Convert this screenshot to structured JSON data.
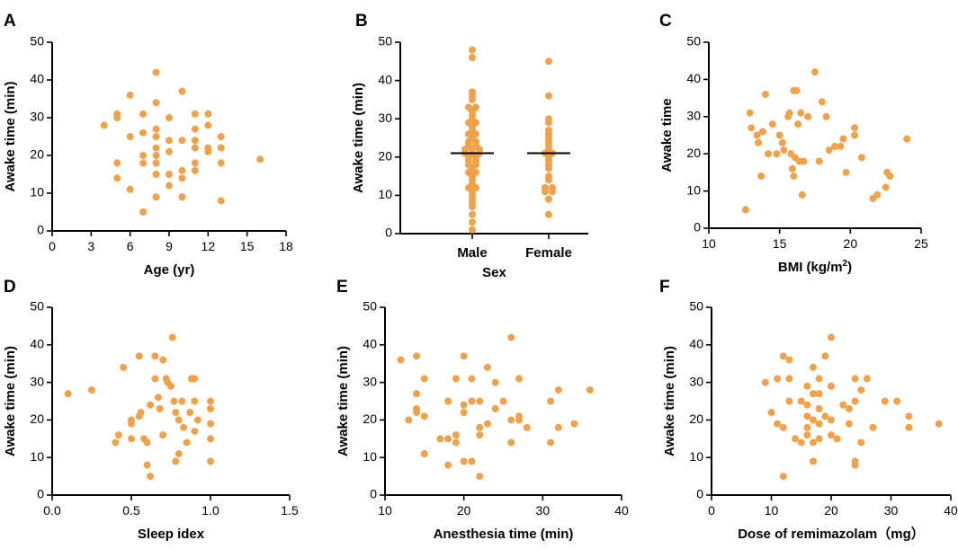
{
  "colors": {
    "marker": "#f0a24a",
    "axis": "#000000"
  },
  "chart_data": [
    {
      "id": "A",
      "type": "scatter",
      "letter": "A",
      "xlabel": "Age (yr)",
      "ylabel": "Awake time (min)",
      "xlim": [
        0,
        18
      ],
      "ylim": [
        0,
        50
      ],
      "xticks": [
        0,
        3,
        6,
        9,
        12,
        15,
        18
      ],
      "yticks": [
        0,
        10,
        20,
        30,
        40,
        50
      ],
      "points": [
        [
          4,
          28
        ],
        [
          5,
          31
        ],
        [
          5,
          30
        ],
        [
          5,
          18
        ],
        [
          5,
          14
        ],
        [
          6,
          36
        ],
        [
          6,
          25
        ],
        [
          6,
          11
        ],
        [
          7,
          31
        ],
        [
          7,
          26
        ],
        [
          7,
          20
        ],
        [
          7,
          18
        ],
        [
          7,
          5
        ],
        [
          8,
          42
        ],
        [
          8,
          34
        ],
        [
          8,
          27
        ],
        [
          8,
          25
        ],
        [
          8,
          22
        ],
        [
          8,
          20
        ],
        [
          8,
          18
        ],
        [
          8,
          15
        ],
        [
          8,
          9
        ],
        [
          9,
          30
        ],
        [
          9,
          24
        ],
        [
          9,
          21
        ],
        [
          9,
          15
        ],
        [
          9,
          12
        ],
        [
          10,
          37
        ],
        [
          10,
          24
        ],
        [
          10,
          16
        ],
        [
          10,
          14
        ],
        [
          10,
          9
        ],
        [
          11,
          31
        ],
        [
          11,
          27
        ],
        [
          11,
          24
        ],
        [
          11,
          22
        ],
        [
          11,
          18
        ],
        [
          11,
          16
        ],
        [
          12,
          31
        ],
        [
          12,
          28
        ],
        [
          12,
          22
        ],
        [
          12,
          21
        ],
        [
          13,
          25
        ],
        [
          13,
          22
        ],
        [
          13,
          18
        ],
        [
          13,
          8
        ],
        [
          16,
          19
        ]
      ]
    },
    {
      "id": "B",
      "type": "strip",
      "letter": "B",
      "xlabel": "Sex",
      "ylabel": "Awake time (min)",
      "ylim": [
        0,
        50
      ],
      "yticks": [
        0,
        10,
        20,
        30,
        40,
        50
      ],
      "categories": [
        "Male",
        "Female"
      ],
      "medians": [
        21,
        21
      ],
      "series": [
        {
          "name": "Male",
          "values": [
            48,
            46,
            37,
            36,
            35,
            33,
            33,
            32,
            31,
            30,
            29,
            29,
            28,
            27,
            26,
            26,
            25,
            24,
            24,
            23,
            23,
            22,
            22,
            22,
            21,
            21,
            21,
            20,
            20,
            19,
            19,
            18,
            18,
            17,
            16,
            16,
            15,
            14,
            13,
            12,
            12,
            11,
            10,
            9,
            8,
            7,
            5,
            3,
            1
          ]
        },
        {
          "name": "Female",
          "values": [
            45,
            36,
            30,
            29,
            27,
            26,
            25,
            24,
            23,
            22,
            21,
            21,
            20,
            19,
            18,
            17,
            15,
            14,
            12,
            12,
            11,
            11,
            9,
            5
          ]
        }
      ]
    },
    {
      "id": "C",
      "type": "scatter",
      "letter": "C",
      "xlabel": "BMI (kg/m",
      "xlabel_sup": "2",
      "xlabel_end": ")",
      "ylabel": "Awake time",
      "xlim": [
        10,
        25
      ],
      "ylim": [
        0,
        50
      ],
      "xticks": [
        10,
        15,
        20,
        25
      ],
      "yticks": [
        0,
        10,
        20,
        30,
        40,
        50
      ],
      "points": [
        [
          12.6,
          5
        ],
        [
          12.9,
          31
        ],
        [
          13,
          27
        ],
        [
          13.4,
          25
        ],
        [
          13.5,
          23
        ],
        [
          13.7,
          14
        ],
        [
          13.8,
          26
        ],
        [
          14,
          36
        ],
        [
          14.2,
          20
        ],
        [
          14.5,
          28
        ],
        [
          14.8,
          20
        ],
        [
          15,
          25
        ],
        [
          15.2,
          23
        ],
        [
          15.3,
          21
        ],
        [
          15.6,
          30
        ],
        [
          15.7,
          31
        ],
        [
          15.8,
          20
        ],
        [
          15.9,
          16
        ],
        [
          16,
          14
        ],
        [
          16,
          37
        ],
        [
          16.1,
          19
        ],
        [
          16.2,
          37
        ],
        [
          16.3,
          28
        ],
        [
          16.4,
          18
        ],
        [
          16.5,
          31
        ],
        [
          16.6,
          9
        ],
        [
          16.7,
          18
        ],
        [
          17,
          30
        ],
        [
          17.5,
          42
        ],
        [
          17.8,
          18
        ],
        [
          18,
          34
        ],
        [
          18.3,
          30
        ],
        [
          18.5,
          21
        ],
        [
          18.9,
          22
        ],
        [
          19.3,
          22
        ],
        [
          19.5,
          24
        ],
        [
          19.7,
          15
        ],
        [
          20.3,
          27
        ],
        [
          20.3,
          25
        ],
        [
          20.8,
          19
        ],
        [
          21.6,
          8
        ],
        [
          21.9,
          9
        ],
        [
          22.5,
          11
        ],
        [
          22.6,
          15
        ],
        [
          22.8,
          14
        ],
        [
          24,
          24
        ]
      ]
    },
    {
      "id": "D",
      "type": "scatter",
      "letter": "D",
      "xlabel": "Sleep idex",
      "ylabel": "Awake time (min)",
      "xlim": [
        0,
        1.5
      ],
      "ylim": [
        0,
        50
      ],
      "xticks": [
        0.0,
        0.5,
        1.0,
        1.5
      ],
      "xtick_labels": [
        "0.0",
        "0.5",
        "1.0",
        "1.5"
      ],
      "yticks": [
        0,
        10,
        20,
        30,
        40,
        50
      ],
      "points": [
        [
          0.1,
          27
        ],
        [
          0.25,
          28
        ],
        [
          0.4,
          14
        ],
        [
          0.42,
          16
        ],
        [
          0.45,
          34
        ],
        [
          0.5,
          15
        ],
        [
          0.5,
          20
        ],
        [
          0.5,
          19
        ],
        [
          0.55,
          37
        ],
        [
          0.55,
          21
        ],
        [
          0.56,
          22
        ],
        [
          0.58,
          15
        ],
        [
          0.6,
          14
        ],
        [
          0.6,
          8
        ],
        [
          0.62,
          5
        ],
        [
          0.62,
          24
        ],
        [
          0.65,
          37
        ],
        [
          0.65,
          31
        ],
        [
          0.67,
          26
        ],
        [
          0.68,
          23
        ],
        [
          0.7,
          16
        ],
        [
          0.7,
          36
        ],
        [
          0.72,
          31
        ],
        [
          0.73,
          30
        ],
        [
          0.75,
          29
        ],
        [
          0.76,
          42
        ],
        [
          0.77,
          25
        ],
        [
          0.78,
          22
        ],
        [
          0.78,
          9
        ],
        [
          0.8,
          11
        ],
        [
          0.8,
          20
        ],
        [
          0.82,
          25
        ],
        [
          0.83,
          18
        ],
        [
          0.85,
          14
        ],
        [
          0.87,
          22
        ],
        [
          0.88,
          31
        ],
        [
          0.9,
          31
        ],
        [
          0.9,
          25
        ],
        [
          0.9,
          17
        ],
        [
          0.92,
          20
        ],
        [
          1.0,
          25
        ],
        [
          1.0,
          23
        ],
        [
          1.0,
          19
        ],
        [
          1.0,
          15
        ],
        [
          1.0,
          9
        ]
      ]
    },
    {
      "id": "E",
      "type": "scatter",
      "letter": "E",
      "xlabel": "Anesthesia time (min)",
      "ylabel": "Awake time (min)",
      "xlim": [
        10,
        40
      ],
      "ylim": [
        0,
        50
      ],
      "xticks": [
        10,
        20,
        30,
        40
      ],
      "yticks": [
        0,
        10,
        20,
        30,
        40,
        50
      ],
      "points": [
        [
          12,
          36
        ],
        [
          13,
          20
        ],
        [
          14,
          37
        ],
        [
          14,
          27
        ],
        [
          14,
          23
        ],
        [
          14,
          22
        ],
        [
          15,
          21
        ],
        [
          15,
          31
        ],
        [
          15,
          11
        ],
        [
          17,
          15
        ],
        [
          18,
          8
        ],
        [
          18,
          15
        ],
        [
          18,
          25
        ],
        [
          19,
          31
        ],
        [
          19,
          16
        ],
        [
          19,
          14
        ],
        [
          20,
          24
        ],
        [
          20,
          37
        ],
        [
          20,
          9
        ],
        [
          20,
          22
        ],
        [
          21,
          31
        ],
        [
          21,
          9
        ],
        [
          21,
          25
        ],
        [
          22,
          5
        ],
        [
          22,
          16
        ],
        [
          22,
          18
        ],
        [
          22,
          25
        ],
        [
          23,
          34
        ],
        [
          23,
          19
        ],
        [
          24,
          23
        ],
        [
          24,
          30
        ],
        [
          25,
          25
        ],
        [
          26,
          20
        ],
        [
          26,
          42
        ],
        [
          26,
          14
        ],
        [
          27,
          20
        ],
        [
          27,
          21
        ],
        [
          27,
          31
        ],
        [
          28,
          18
        ],
        [
          31,
          25
        ],
        [
          31,
          14
        ],
        [
          32,
          18
        ],
        [
          32,
          28
        ],
        [
          34,
          19
        ],
        [
          36,
          28
        ]
      ]
    },
    {
      "id": "F",
      "type": "scatter",
      "letter": "F",
      "xlabel": "Dose of remimazolam（mg）",
      "ylabel": "Awake time (min)",
      "xlim": [
        0,
        40
      ],
      "ylim": [
        0,
        50
      ],
      "xticks": [
        0,
        10,
        20,
        30,
        40
      ],
      "yticks": [
        0,
        10,
        20,
        30,
        40,
        50
      ],
      "points": [
        [
          9,
          30
        ],
        [
          10,
          22
        ],
        [
          11,
          31
        ],
        [
          11,
          19
        ],
        [
          12,
          37
        ],
        [
          12,
          5
        ],
        [
          12,
          18
        ],
        [
          13,
          36
        ],
        [
          13,
          31
        ],
        [
          13,
          25
        ],
        [
          14,
          15
        ],
        [
          15,
          14
        ],
        [
          15,
          25
        ],
        [
          16,
          21
        ],
        [
          16,
          29
        ],
        [
          16,
          24
        ],
        [
          16,
          18
        ],
        [
          16,
          16
        ],
        [
          17,
          34
        ],
        [
          17,
          27
        ],
        [
          17,
          20
        ],
        [
          17,
          14
        ],
        [
          17,
          9
        ],
        [
          18,
          31
        ],
        [
          18,
          27
        ],
        [
          18,
          23
        ],
        [
          18,
          19
        ],
        [
          18,
          15
        ],
        [
          19,
          37
        ],
        [
          19,
          21
        ],
        [
          20,
          42
        ],
        [
          20,
          29
        ],
        [
          20,
          16
        ],
        [
          20,
          20
        ],
        [
          21,
          15
        ],
        [
          22,
          24
        ],
        [
          23,
          23
        ],
        [
          23,
          19
        ],
        [
          24,
          9
        ],
        [
          24,
          8
        ],
        [
          24,
          25
        ],
        [
          24,
          31
        ],
        [
          25,
          28
        ],
        [
          25,
          14
        ],
        [
          26,
          31
        ],
        [
          27,
          18
        ],
        [
          29,
          25
        ],
        [
          31,
          25
        ],
        [
          33,
          21
        ],
        [
          33,
          18
        ],
        [
          38,
          19
        ]
      ]
    }
  ]
}
